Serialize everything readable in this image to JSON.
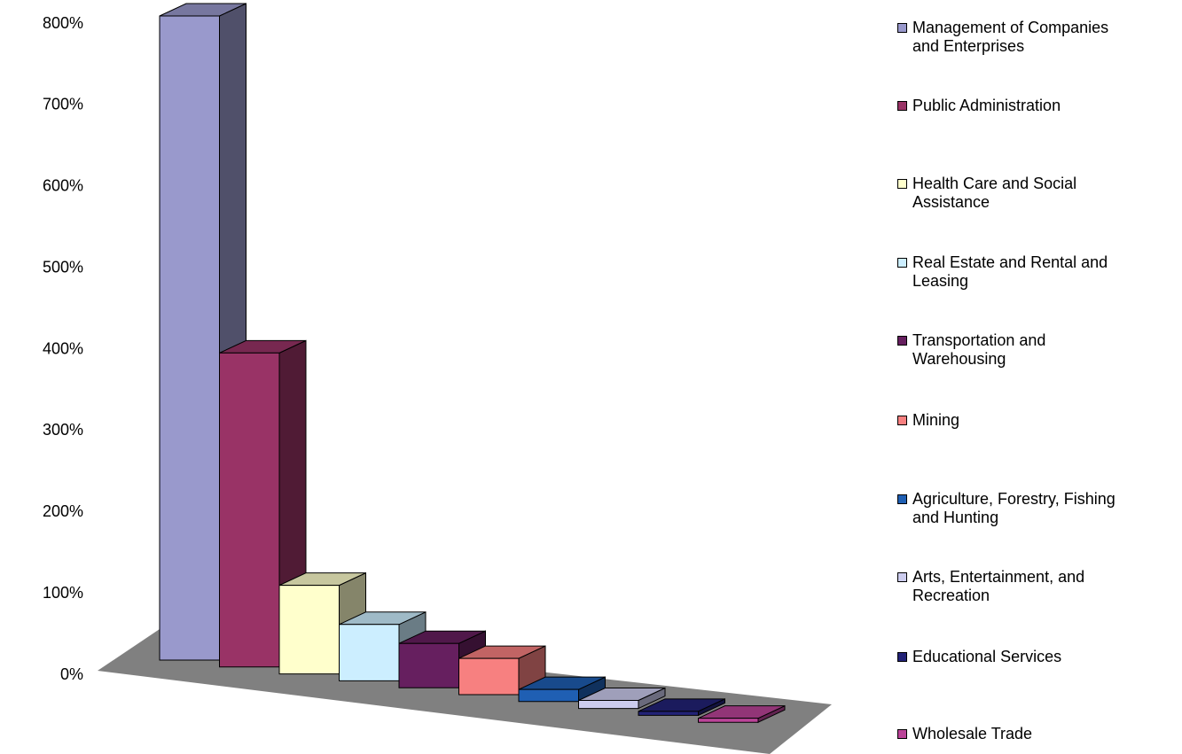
{
  "chart_data": {
    "type": "bar",
    "title": "",
    "xlabel": "",
    "ylabel": "",
    "ylim": [
      0,
      800
    ],
    "y_ticks": [
      "0%",
      "100%",
      "200%",
      "300%",
      "400%",
      "500%",
      "600%",
      "700%",
      "800%"
    ],
    "legend_position": "right",
    "grid": false,
    "categories": [
      "Management of Companies and Enterprises",
      "Public Administration",
      "Health Care and Social Assistance",
      "Real Estate and Rental and Leasing",
      "Transportation and Warehousing",
      "Mining",
      "Agriculture, Forestry, Fishing and Hunting",
      "Arts, Entertainment, and Recreation",
      "Educational Services",
      "Wholesale Trade"
    ],
    "values": [
      800,
      390,
      110,
      70,
      55,
      45,
      15,
      10,
      5,
      5
    ],
    "colors": [
      "#9999cc",
      "#993366",
      "#ffffcc",
      "#cceeff",
      "#661f5f",
      "#f78080",
      "#1f5fb3",
      "#ccccee",
      "#222277",
      "#bb4499"
    ],
    "legend_labels": [
      "Management of Companies\nand Enterprises",
      "Public Administration",
      "Health Care and Social\nAssistance",
      "Real Estate and Rental and\nLeasing",
      "Transportation and\nWarehousing",
      "Mining",
      "Agriculture, Forestry, Fishing\nand Hunting",
      "Arts, Entertainment, and\nRecreation",
      "Educational Services",
      "Wholesale Trade"
    ]
  }
}
